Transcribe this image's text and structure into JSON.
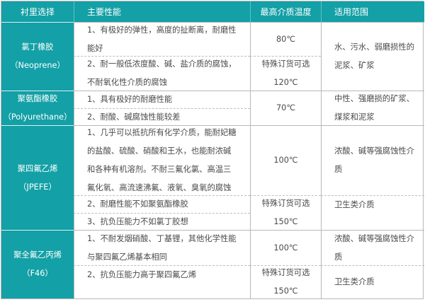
{
  "colors": {
    "header_bg": "#13a0a6",
    "header_text": "#ffffff",
    "border": "#b8b8b8",
    "text": "#4a4a4a"
  },
  "header": [
    "衬里选择",
    "主要性能",
    "最高介质温度",
    "适用范围"
  ],
  "rows": [
    {
      "name": "氯丁橡胶",
      "code": "（Neoprene）",
      "props": [
        "1、有极好的弹性，高度的扯断离，耐磨性",
        "能好",
        "2、耐一般低浓度酸、碱、盐介质的腐蚀，",
        "不耐氧化性介质的腐蚀"
      ],
      "temps": [
        "80℃",
        "特殊订货可选",
        "120℃"
      ],
      "scope": [
        "水、污水、弱磨损性的",
        "泥浆、矿浆"
      ]
    },
    {
      "name": "聚氨酯橡胶",
      "code": "（Polyurethane）",
      "props": [
        "1、具有极好的耐磨性能",
        "2、耐酸、碱腐蚀性能较差"
      ],
      "temps": [
        "70℃"
      ],
      "scope": [
        "中性、强磨损的矿浆、",
        "煤浆和泥浆"
      ]
    },
    {
      "name": "聚四氟乙烯",
      "code": "（JPEFE）",
      "props": [
        "1、几乎可以抵抗所有化学介质，能耐妃糖",
        "的盐酸、硫酸、硝酸和王水，也能耐浓碱",
        "和各种有机溶剂。不耐三氟化氯、高温三",
        "氟化氧、高流速沸氟、液氧、臭氧的腐蚀",
        "2、耐磨性能不如聚氨酯橡胶",
        "3、抗负压能力不如氯丁胶想"
      ],
      "temps": [
        "100℃",
        "特殊订货可选",
        "150℃"
      ],
      "scope": [
        "浓酸、碱等强腐蚀性介",
        "质",
        "卫生类介质"
      ]
    },
    {
      "name": "聚全氟乙丙烯",
      "code": "（F46）",
      "props": [
        "1、不耐发烟硝酸、丁基锂，其他化学性能",
        "与聚四氟乙烯基本相同",
        "2、抗负压能力高于聚四氟乙烯"
      ],
      "temps": [
        "100℃",
        "特殊订货可选",
        "150℃"
      ],
      "scope": [
        "浓酸、碱等强腐蚀性介",
        "质",
        "卫生类介质"
      ]
    }
  ]
}
